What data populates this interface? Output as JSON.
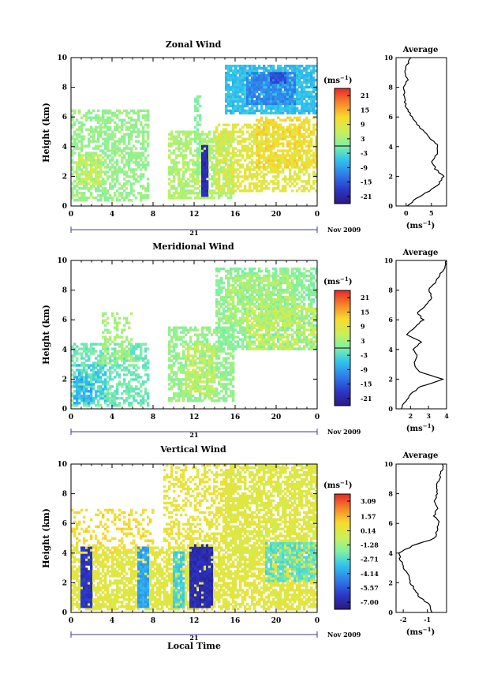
{
  "chart_data": [
    {
      "type": "heatmap",
      "title": "Zonal Wind",
      "ylabel": "Height (km)",
      "xlabel": "",
      "xlim": [
        0,
        24
      ],
      "ylim": [
        0,
        10
      ],
      "x_ticks": [
        "0",
        "4",
        "8",
        "12",
        "16",
        "20",
        "0"
      ],
      "y_ticks": [
        "0",
        "2",
        "4",
        "6",
        "8",
        "10"
      ],
      "date_day": "21",
      "date_month": "Nov 2009",
      "colorbar": {
        "unit": "(ms",
        "unit_exp": "−1",
        "labels": [
          "21",
          "15",
          "9",
          "3",
          "-3",
          "-9",
          "-15",
          "-21"
        ],
        "values": [
          21,
          15,
          9,
          3,
          -3,
          -9,
          -15,
          -21
        ],
        "vmin": -24,
        "vmax": 24
      },
      "blobs": [
        {
          "x": [
            0,
            7.5
          ],
          "y": [
            0.3,
            6.5
          ],
          "v": 2,
          "density": 0.55
        },
        {
          "x": [
            0.5,
            3
          ],
          "y": [
            1.5,
            3.5
          ],
          "v": 6,
          "density": 0.6
        },
        {
          "x": [
            9.5,
            16
          ],
          "y": [
            0.5,
            5
          ],
          "v": 4,
          "density": 0.65
        },
        {
          "x": [
            14,
            24
          ],
          "y": [
            1,
            5.5
          ],
          "v": 9,
          "density": 0.55
        },
        {
          "x": [
            18,
            24
          ],
          "y": [
            2.5,
            6
          ],
          "v": 12,
          "density": 0.45
        },
        {
          "x": [
            12.8,
            13.3
          ],
          "y": [
            0.6,
            4.2
          ],
          "v": -20,
          "density": 0.9
        },
        {
          "x": [
            15,
            24
          ],
          "y": [
            6.2,
            9.5
          ],
          "v": -6,
          "density": 0.85
        },
        {
          "x": [
            17,
            22
          ],
          "y": [
            6.8,
            9.0
          ],
          "v": -11,
          "density": 0.8
        },
        {
          "x": [
            19.5,
            21
          ],
          "y": [
            8.3,
            9.0
          ],
          "v": -16,
          "density": 0.9
        },
        {
          "x": [
            12,
            12.8
          ],
          "y": [
            2,
            7.5
          ],
          "v": 1,
          "density": 0.5
        }
      ],
      "average": {
        "xlim": [
          -2,
          8
        ],
        "x_ticks": [
          "0",
          "5"
        ],
        "x_tick_values": [
          0,
          5
        ],
        "xlabel": "(ms",
        "xlabel_exp": "−1",
        "title": "Average",
        "heights": [
          0.0,
          0.5,
          1.0,
          1.5,
          2.0,
          2.5,
          3.0,
          3.5,
          4.0,
          4.5,
          5.0,
          5.5,
          6.0,
          6.5,
          7.0,
          7.5,
          8.0,
          8.5,
          9.0,
          9.5,
          10.0
        ],
        "values": [
          0.2,
          2.0,
          4.5,
          6.5,
          7.4,
          5.8,
          5.2,
          6.0,
          6.4,
          5.0,
          3.5,
          2.2,
          1.2,
          0.2,
          -0.2,
          -0.4,
          -0.6,
          0.4,
          -0.4,
          0.2,
          0.8
        ]
      }
    },
    {
      "type": "heatmap",
      "title": "Meridional Wind",
      "ylabel": "Height (km)",
      "xlabel": "",
      "xlim": [
        0,
        24
      ],
      "ylim": [
        0,
        10
      ],
      "x_ticks": [
        "0",
        "4",
        "8",
        "12",
        "16",
        "20",
        "0"
      ],
      "y_ticks": [
        "0",
        "2",
        "4",
        "6",
        "8",
        "10"
      ],
      "date_day": "21",
      "date_month": "Nov 2009",
      "colorbar": {
        "unit": "(ms",
        "unit_exp": "−1",
        "labels": [
          "21",
          "15",
          "9",
          "3",
          "-3",
          "-9",
          "-15",
          "-21"
        ],
        "values": [
          21,
          15,
          9,
          3,
          -3,
          -9,
          -15,
          -21
        ],
        "vmin": -24,
        "vmax": 24
      },
      "blobs": [
        {
          "x": [
            0,
            7.5
          ],
          "y": [
            0.2,
            4.5
          ],
          "v": -1,
          "density": 0.55
        },
        {
          "x": [
            0.5,
            3.5
          ],
          "y": [
            0.5,
            3
          ],
          "v": -5,
          "density": 0.5
        },
        {
          "x": [
            3,
            6
          ],
          "y": [
            3,
            6.5
          ],
          "v": 3,
          "density": 0.4
        },
        {
          "x": [
            9.5,
            16
          ],
          "y": [
            0.5,
            5.5
          ],
          "v": 2,
          "density": 0.6
        },
        {
          "x": [
            11,
            14
          ],
          "y": [
            1,
            4.5
          ],
          "v": 6,
          "density": 0.45
        },
        {
          "x": [
            14,
            24
          ],
          "y": [
            4,
            9.5
          ],
          "v": 1,
          "density": 0.6
        },
        {
          "x": [
            15,
            22
          ],
          "y": [
            5.5,
            9
          ],
          "v": 4,
          "density": 0.5
        },
        {
          "x": [
            17,
            24
          ],
          "y": [
            4,
            7
          ],
          "v": 6,
          "density": 0.45
        },
        {
          "x": [
            0.3,
            2
          ],
          "y": [
            0.3,
            2.2
          ],
          "v": -8,
          "density": 0.5
        }
      ],
      "average": {
        "xlim": [
          1.2,
          4
        ],
        "x_ticks": [
          "2",
          "3",
          "4"
        ],
        "x_tick_values": [
          2,
          3,
          4
        ],
        "xlabel": "(ms",
        "xlabel_exp": "−1",
        "title": "Average",
        "heights": [
          0.0,
          0.5,
          1.0,
          1.5,
          2.0,
          2.5,
          3.0,
          3.5,
          4.0,
          4.5,
          5.0,
          5.5,
          6.0,
          6.5,
          7.0,
          7.5,
          8.0,
          8.5,
          9.0,
          9.5,
          10.0
        ],
        "values": [
          1.5,
          1.7,
          2.0,
          2.6,
          3.8,
          2.5,
          2.2,
          2.4,
          2.1,
          2.6,
          1.8,
          2.2,
          2.7,
          2.4,
          2.9,
          3.2,
          3.0,
          3.4,
          3.6,
          3.9,
          4.0
        ]
      }
    },
    {
      "type": "heatmap",
      "title": "Vertical Wind",
      "ylabel": "Height (km)",
      "xlabel": "Local Time",
      "xlim": [
        0,
        24
      ],
      "ylim": [
        0,
        10
      ],
      "x_ticks": [
        "0",
        "4",
        "8",
        "12",
        "16",
        "20",
        "0"
      ],
      "y_ticks": [
        "0",
        "2",
        "4",
        "6",
        "8",
        "10"
      ],
      "date_day": "21",
      "date_month": "Nov 2009",
      "colorbar": {
        "unit": "(ms",
        "unit_exp": "−1",
        "labels": [
          "3.09",
          "1.57",
          "0.14",
          "-1.28",
          "-2.71",
          "-4.14",
          "-5.57",
          "-7.00"
        ],
        "values": [
          3.09,
          1.57,
          0.14,
          -1.28,
          -2.71,
          -4.14,
          -5.57,
          -7.0
        ],
        "vmin": -7.7,
        "vmax": 3.8
      },
      "blobs": [
        {
          "x": [
            0,
            24
          ],
          "y": [
            0.2,
            4.5
          ],
          "v": 0.2,
          "density": 0.7
        },
        {
          "x": [
            1,
            2
          ],
          "y": [
            0.3,
            4.4
          ],
          "v": -6.5,
          "density": 0.95
        },
        {
          "x": [
            6.5,
            7.5
          ],
          "y": [
            0.3,
            4.4
          ],
          "v": -4,
          "density": 0.9
        },
        {
          "x": [
            10,
            11
          ],
          "y": [
            0.3,
            4.2
          ],
          "v": -3,
          "density": 0.85
        },
        {
          "x": [
            11.5,
            13.8
          ],
          "y": [
            0.3,
            4.6
          ],
          "v": -6.8,
          "density": 0.95
        },
        {
          "x": [
            9,
            16
          ],
          "y": [
            4.5,
            10
          ],
          "v": 0.4,
          "density": 0.45
        },
        {
          "x": [
            15,
            24
          ],
          "y": [
            4,
            10
          ],
          "v": 0.1,
          "density": 0.7
        },
        {
          "x": [
            19,
            24
          ],
          "y": [
            2,
            4.8
          ],
          "v": -2.5,
          "density": 0.7
        },
        {
          "x": [
            0,
            8
          ],
          "y": [
            4,
            7
          ],
          "v": 0.8,
          "density": 0.3
        }
      ],
      "average": {
        "xlim": [
          -2.3,
          -0.2
        ],
        "x_ticks": [
          "-2",
          "-1"
        ],
        "x_tick_values": [
          -2,
          -1
        ],
        "xlabel": "(ms",
        "xlabel_exp": "−1",
        "title": "Average",
        "heights": [
          0.0,
          0.5,
          1.0,
          1.5,
          2.0,
          2.5,
          3.0,
          3.5,
          4.0,
          4.5,
          5.0,
          5.5,
          6.0,
          6.5,
          7.0,
          7.5,
          8.0,
          8.5,
          9.0,
          9.5,
          10.0
        ],
        "values": [
          -0.8,
          -0.9,
          -1.3,
          -1.5,
          -1.7,
          -1.8,
          -2.0,
          -2.1,
          -2.2,
          -1.6,
          -0.7,
          -0.6,
          -0.5,
          -0.7,
          -0.6,
          -0.7,
          -0.6,
          -0.6,
          -0.5,
          -0.4,
          -0.35
        ]
      }
    }
  ]
}
